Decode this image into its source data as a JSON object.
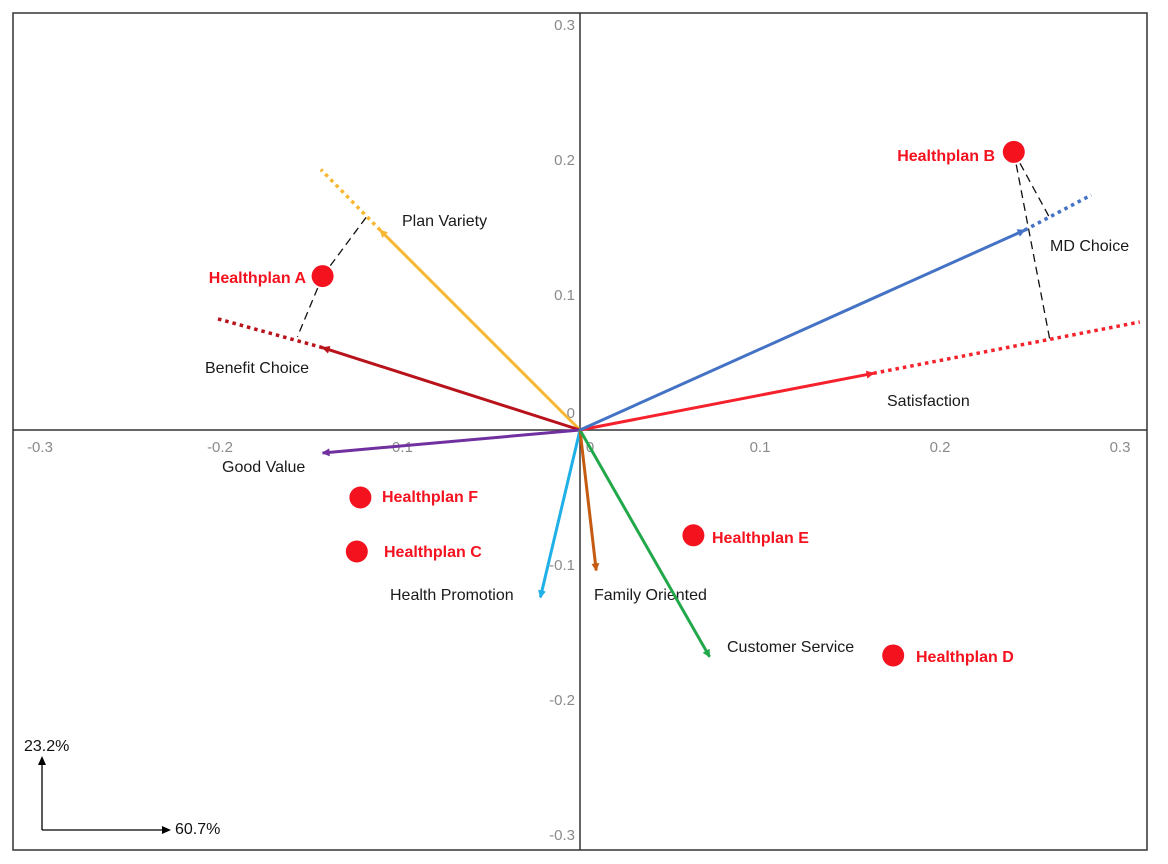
{
  "chart_data": {
    "type": "scatter",
    "subtype": "biplot",
    "title": "",
    "xlim": [
      -0.31,
      0.31
    ],
    "ylim": [
      -0.31,
      0.31
    ],
    "x_ticks": [
      -0.3,
      -0.2,
      -0.1,
      0,
      0.1,
      0.2,
      0.3
    ],
    "y_ticks": [
      0.3,
      0.2,
      0.1,
      0,
      -0.1,
      -0.2,
      -0.3
    ],
    "x_tick_labels": [
      "-0.3",
      "-0.2",
      "-0.1",
      "0",
      "0.1",
      "0.2",
      "0.3"
    ],
    "y_tick_labels": [
      "0.3",
      "0.2",
      "0.1",
      "0",
      "-0.1",
      "-0.2",
      "-0.3"
    ],
    "axis_variance": {
      "x_label": "60.7%",
      "y_label": "23.2%"
    },
    "points": [
      {
        "name": "Healthplan A",
        "x": -0.143,
        "y": 0.114
      },
      {
        "name": "Healthplan B",
        "x": 0.241,
        "y": 0.206
      },
      {
        "name": "Healthplan C",
        "x": -0.124,
        "y": -0.09
      },
      {
        "name": "Healthplan D",
        "x": 0.174,
        "y": -0.167
      },
      {
        "name": "Healthplan E",
        "x": 0.063,
        "y": -0.078
      },
      {
        "name": "Healthplan F",
        "x": -0.122,
        "y": -0.05
      }
    ],
    "point_color": "#f5121f",
    "vectors": [
      {
        "name": "Plan Variety",
        "x": -0.111,
        "y": 0.148,
        "ext": [
          -0.144,
          0.193
        ],
        "color": "#f8b733"
      },
      {
        "name": "Benefit Choice",
        "x": -0.143,
        "y": 0.061,
        "ext": [
          -0.203,
          0.083
        ],
        "color": "#b8121b"
      },
      {
        "name": "Good Value",
        "x": -0.143,
        "y": -0.017,
        "color": "#7030a0"
      },
      {
        "name": "Health Promotion",
        "x": -0.022,
        "y": -0.124,
        "color": "#1fb0e8"
      },
      {
        "name": "Family Oriented",
        "x": 0.009,
        "y": -0.104,
        "color": "#c55a11"
      },
      {
        "name": "Customer Service",
        "x": 0.072,
        "y": -0.168,
        "color": "#22a84a"
      },
      {
        "name": "Satisfaction",
        "x": 0.163,
        "y": 0.042,
        "ext": [
          0.311,
          0.08
        ],
        "color": "#f5222d"
      },
      {
        "name": "MD Choice",
        "x": 0.247,
        "y": 0.148,
        "ext": [
          0.284,
          0.174
        ],
        "color": "#4472c4"
      }
    ],
    "projections": [
      {
        "point": "Healthplan A",
        "vector": "Plan Variety",
        "foot": [
          -0.118,
          0.159
        ]
      },
      {
        "point": "Healthplan A",
        "vector": "Benefit Choice",
        "foot": [
          -0.157,
          0.069
        ]
      },
      {
        "point": "Healthplan B",
        "vector": "MD Choice",
        "foot": [
          0.261,
          0.157
        ]
      },
      {
        "point": "Healthplan B",
        "vector": "Satisfaction",
        "foot": [
          0.261,
          0.067
        ]
      }
    ],
    "grid": false,
    "legend": "none"
  }
}
